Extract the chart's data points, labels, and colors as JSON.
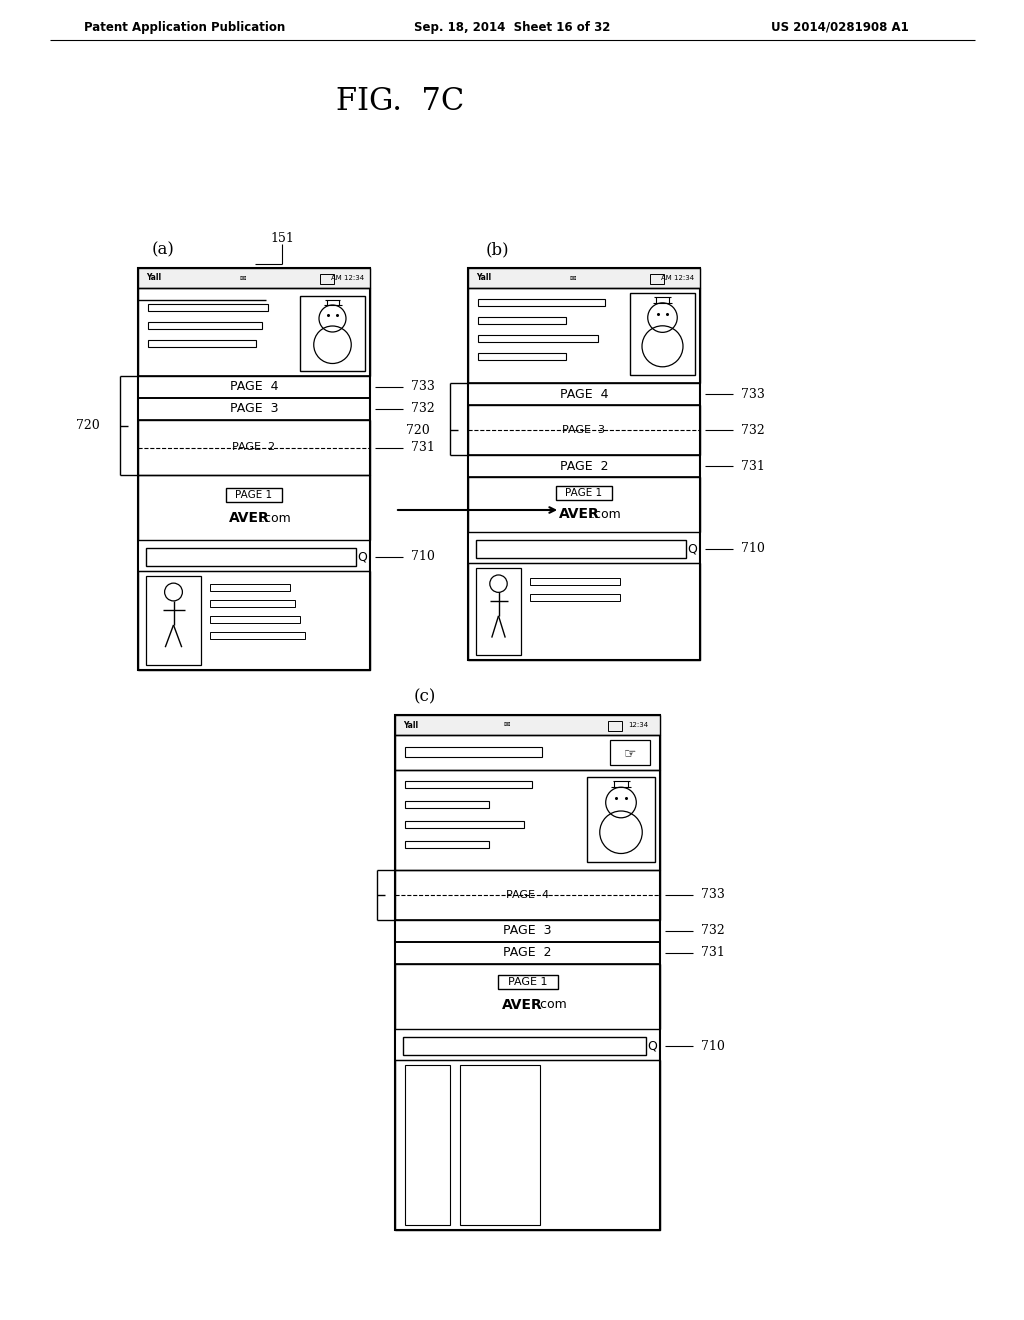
{
  "title": "FIG.  7C",
  "header_left": "Patent Application Publication",
  "header_mid": "Sep. 18, 2014  Sheet 16 of 32",
  "header_right": "US 2014/0281908 A1",
  "bg_color": "#ffffff",
  "panel_a_label": "(a)",
  "panel_b_label": "(b)",
  "panel_c_label": "(c)",
  "ref_151": "151",
  "ref_720": "720",
  "ref_710": "710",
  "ref_731": "731",
  "ref_732": "732",
  "ref_733": "733",
  "page1": "PAGE  1",
  "page2": "PAGE  2",
  "page3": "PAGE  3",
  "page4": "PAGE  4",
  "aver": "AVER",
  "dot_com": ".com",
  "search_q": "Q"
}
